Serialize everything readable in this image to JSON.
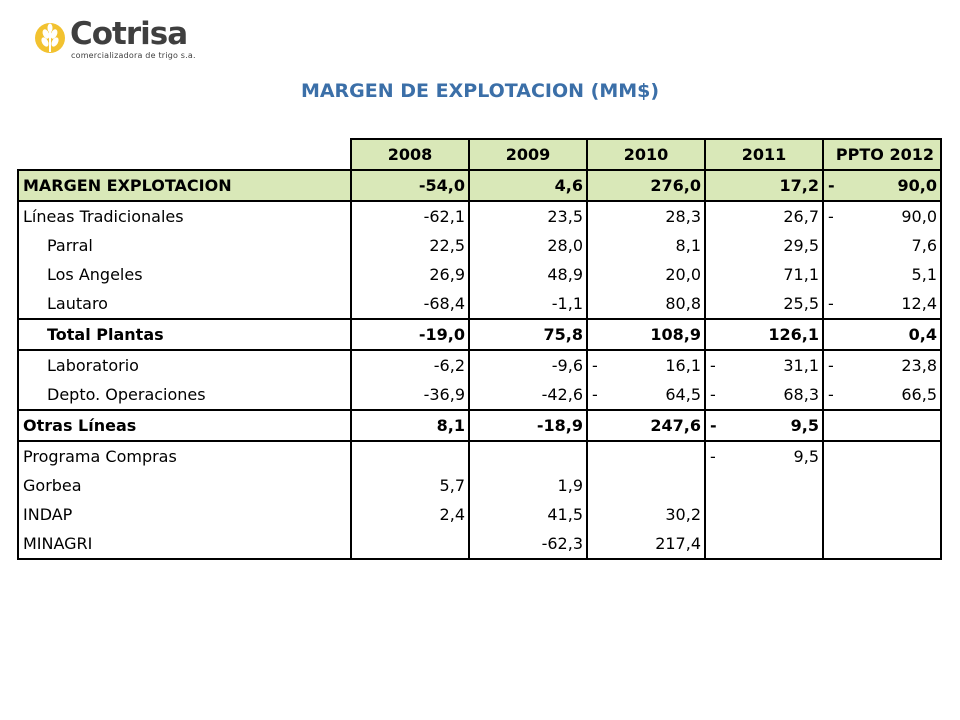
{
  "logo": {
    "brand": "Cotrisa",
    "tagline": "comercializadora de trigo s.a.",
    "colors": {
      "mark": "#e8b820",
      "text": "#3f3f3f"
    }
  },
  "title": "MARGEN DE EXPLOTACION (MM$)",
  "table": {
    "columns": [
      "2008",
      "2009",
      "2010",
      "2011",
      "PPTO 2012"
    ],
    "rows": [
      {
        "label": "MARGEN EXPLOTACION",
        "values": [
          {
            "v": "-54,0"
          },
          {
            "v": "4,6"
          },
          {
            "v": "276,0"
          },
          {
            "v": "17,2"
          },
          {
            "v": "90,0",
            "dash": "-"
          }
        ]
      },
      {
        "label": "Líneas Tradicionales",
        "values": [
          {
            "v": "-62,1"
          },
          {
            "v": "23,5"
          },
          {
            "v": "28,3"
          },
          {
            "v": "26,7"
          },
          {
            "v": "90,0",
            "dash": "-"
          }
        ]
      },
      {
        "label": "Parral",
        "values": [
          {
            "v": "22,5"
          },
          {
            "v": "28,0"
          },
          {
            "v": "8,1"
          },
          {
            "v": "29,5"
          },
          {
            "v": "7,6"
          }
        ]
      },
      {
        "label": "Los Angeles",
        "values": [
          {
            "v": "26,9"
          },
          {
            "v": "48,9"
          },
          {
            "v": "20,0"
          },
          {
            "v": "71,1"
          },
          {
            "v": "5,1"
          }
        ]
      },
      {
        "label": "Lautaro",
        "values": [
          {
            "v": "-68,4"
          },
          {
            "v": "-1,1"
          },
          {
            "v": "80,8"
          },
          {
            "v": "25,5"
          },
          {
            "v": "12,4",
            "dash": "-"
          }
        ]
      },
      {
        "label": "Total Plantas",
        "values": [
          {
            "v": "-19,0"
          },
          {
            "v": "75,8"
          },
          {
            "v": "108,9"
          },
          {
            "v": "126,1"
          },
          {
            "v": "0,4"
          }
        ]
      },
      {
        "label": "Laboratorio",
        "values": [
          {
            "v": "-6,2"
          },
          {
            "v": "-9,6"
          },
          {
            "v": "16,1",
            "dash": "-"
          },
          {
            "v": "31,1",
            "dash": "-"
          },
          {
            "v": "23,8",
            "dash": "-"
          }
        ]
      },
      {
        "label": "Depto. Operaciones",
        "values": [
          {
            "v": "-36,9"
          },
          {
            "v": "-42,6"
          },
          {
            "v": "64,5",
            "dash": "-"
          },
          {
            "v": "68,3",
            "dash": "-"
          },
          {
            "v": "66,5",
            "dash": "-"
          }
        ]
      },
      {
        "label": "Otras Líneas",
        "values": [
          {
            "v": "8,1"
          },
          {
            "v": "-18,9"
          },
          {
            "v": "247,6"
          },
          {
            "v": "9,5",
            "dash": "-"
          },
          {
            "v": ""
          }
        ]
      },
      {
        "label": "Programa Compras",
        "values": [
          {
            "v": ""
          },
          {
            "v": ""
          },
          {
            "v": ""
          },
          {
            "v": "9,5",
            "dash": "-"
          },
          {
            "v": ""
          }
        ]
      },
      {
        "label": "Gorbea",
        "values": [
          {
            "v": "5,7"
          },
          {
            "v": "1,9"
          },
          {
            "v": ""
          },
          {
            "v": ""
          },
          {
            "v": ""
          }
        ]
      },
      {
        "label": "INDAP",
        "values": [
          {
            "v": "2,4"
          },
          {
            "v": "41,5"
          },
          {
            "v": "30,2"
          },
          {
            "v": ""
          },
          {
            "v": ""
          }
        ]
      },
      {
        "label": "MINAGRI",
        "values": [
          {
            "v": ""
          },
          {
            "v": "-62,3"
          },
          {
            "v": "217,4"
          },
          {
            "v": ""
          },
          {
            "v": ""
          }
        ]
      }
    ]
  }
}
